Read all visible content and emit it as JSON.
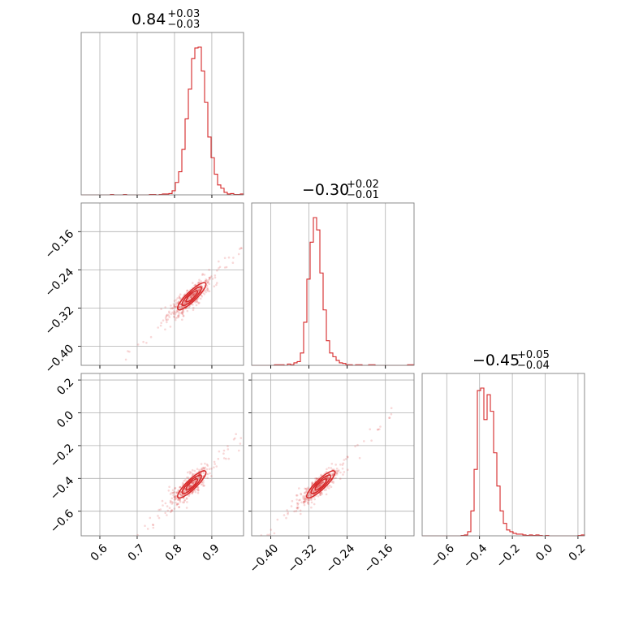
{
  "chart_data": {
    "type": "corner",
    "color": "#d62728",
    "grid": true,
    "parameters": [
      {
        "title_value": "0.84",
        "title_plus": "+0.03",
        "title_minus": "−0.03",
        "range": [
          0.55,
          0.985
        ],
        "ticks": [
          0.6,
          0.7,
          0.8,
          0.9
        ],
        "tick_labels": [
          "0.6",
          "0.7",
          "0.8",
          "0.9"
        ]
      },
      {
        "title_value": "−0.30",
        "title_plus": "+0.02",
        "title_minus": "−0.01",
        "range": [
          -0.44,
          -0.1
        ],
        "ticks": [
          -0.4,
          -0.32,
          -0.24,
          -0.16
        ],
        "tick_labels": [
          "−0.40",
          "−0.32",
          "−0.24",
          "−0.16"
        ]
      },
      {
        "title_value": "−0.45",
        "title_plus": "+0.05",
        "title_minus": "−0.04",
        "range": [
          -0.75,
          0.24
        ],
        "ticks": [
          -0.6,
          -0.4,
          -0.2,
          0.0,
          0.2
        ],
        "tick_labels": [
          "−0.6",
          "−0.4",
          "−0.2",
          "0.0",
          "0.2"
        ]
      }
    ],
    "histograms": [
      {
        "param": 0,
        "bins": [
          0.55,
          0.985
        ],
        "counts": [
          0,
          0,
          0,
          0,
          0,
          0,
          0,
          0,
          0,
          0.5,
          0,
          0,
          0,
          0.5,
          0,
          0,
          0,
          0,
          0,
          0,
          0,
          0.5,
          0.5,
          0,
          0.5,
          1,
          1,
          1.5,
          5,
          15,
          28,
          55,
          92,
          128,
          165,
          178,
          179,
          150,
          112,
          70,
          45,
          25,
          12,
          8,
          3,
          1,
          1.5,
          0.5,
          0.5,
          1
        ]
      },
      {
        "param": 1,
        "bins": [
          -0.44,
          -0.1
        ],
        "counts": [
          0,
          0,
          0,
          0,
          0,
          0,
          0,
          0.5,
          0.5,
          0.5,
          0,
          1,
          0.5,
          2,
          3,
          10,
          35,
          70,
          100,
          120,
          110,
          75,
          45,
          20,
          10,
          7,
          4,
          2,
          1.5,
          0.5,
          0.5,
          0,
          0.5,
          0.5,
          0,
          0,
          0.5,
          0.5,
          0,
          0,
          0,
          0,
          0,
          0,
          0,
          0,
          0,
          0,
          0.5,
          0.5
        ]
      },
      {
        "param": 2,
        "bins": [
          -0.75,
          0.24
        ],
        "counts": [
          0,
          0,
          0,
          0,
          0,
          0,
          0,
          0,
          0,
          0,
          0,
          0,
          0.5,
          1,
          5,
          30,
          80,
          175,
          178,
          140,
          170,
          150,
          100,
          60,
          30,
          15,
          7,
          5,
          3,
          2,
          2,
          1,
          0.5,
          1,
          0.5,
          1,
          0.5,
          0,
          0.5,
          0,
          0,
          0,
          0,
          0,
          0,
          0,
          0,
          0,
          0.5,
          1
        ]
      }
    ],
    "scatter": [
      {
        "params": [
          0,
          1
        ],
        "center": [
          0.84,
          -0.3
        ],
        "contour_levels": [
          0.39,
          0.86,
          1.39
        ]
      },
      {
        "params": [
          0,
          2
        ],
        "center": [
          0.84,
          -0.45
        ],
        "contour_levels": [
          0.39,
          0.86,
          1.39
        ]
      },
      {
        "params": [
          1,
          2
        ],
        "center": [
          -0.3,
          -0.45
        ],
        "contour_levels": [
          0.39,
          0.86,
          1.39
        ]
      }
    ]
  }
}
